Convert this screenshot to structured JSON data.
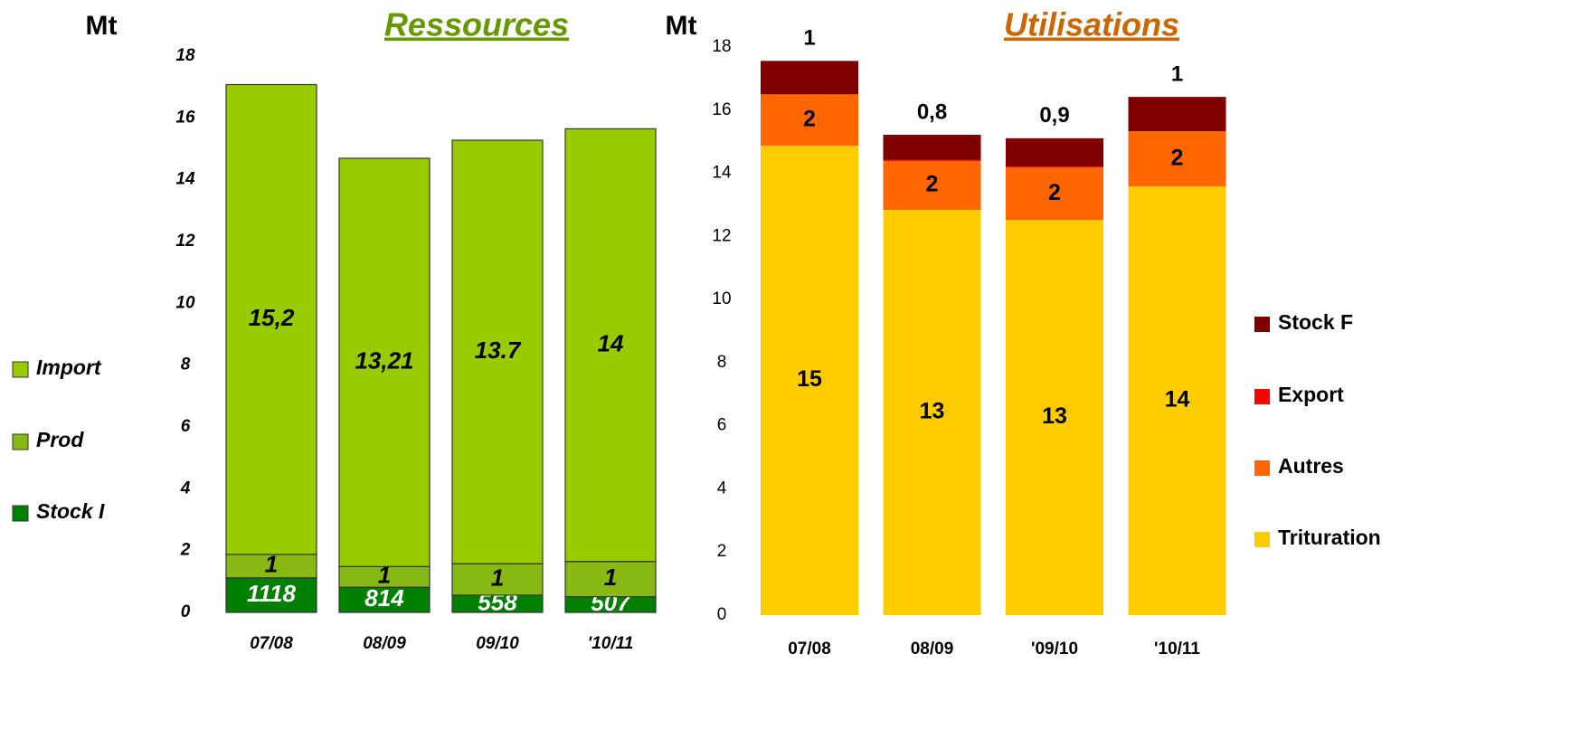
{
  "chart_data": [
    {
      "type": "stacked_bar",
      "title": "Ressources",
      "y_label": "Mt",
      "categories": [
        "07/08",
        "08/09",
        "09/10",
        "'10/11"
      ],
      "ylim": [
        0,
        18
      ],
      "yticks": [
        0,
        2,
        4,
        6,
        8,
        10,
        12,
        14,
        16,
        18
      ],
      "series": [
        {
          "name": "Stock I",
          "color": "#008000",
          "label_color": "#ffffff",
          "values": [
            1.118,
            0.814,
            0.558,
            0.507
          ],
          "value_labels": [
            "1118",
            "814",
            "558",
            "507"
          ]
        },
        {
          "name": "Prod",
          "color": "#88b814",
          "label_color": "#000000",
          "values": [
            0.76,
            0.67,
            1.02,
            1.14
          ],
          "value_labels": [
            "1",
            "1",
            "1",
            "1"
          ]
        },
        {
          "name": "Import",
          "color": "#99cc00",
          "label_color": "#000000",
          "values": [
            15.2,
            13.21,
            13.7,
            14
          ],
          "value_labels": [
            "15,2",
            "13,21",
            "13.7",
            "14"
          ]
        }
      ]
    },
    {
      "type": "stacked_bar",
      "title": "Utilisations",
      "y_label": "Mt",
      "categories": [
        "07/08",
        "08/09",
        "'09/10",
        "'10/11"
      ],
      "ylim": [
        0,
        18
      ],
      "yticks": [
        0,
        2,
        4,
        6,
        8,
        10,
        12,
        14,
        16,
        18
      ],
      "series": [
        {
          "name": "Trituration",
          "color": "#ffcc00",
          "label_color": "#000000",
          "values": [
            14.87,
            12.84,
            12.52,
            13.58
          ],
          "value_labels": [
            "15",
            "13",
            "13",
            "14"
          ]
        },
        {
          "name": "Autres",
          "color": "#ff6600",
          "label_color": "#000000",
          "values": [
            1.63,
            1.55,
            1.66,
            1.75
          ],
          "value_labels": [
            "2",
            "2",
            "2",
            "2"
          ]
        },
        {
          "name": "Export",
          "color": "#ff0000",
          "values": [
            0,
            0.03,
            0.03,
            0
          ]
        },
        {
          "name": "Stock F",
          "color": "#800000",
          "label_color": "#000000",
          "label_position": "above",
          "values": [
            1.06,
            0.8,
            0.9,
            1.09
          ],
          "value_labels": [
            "1",
            "0,8",
            "0,9",
            "1"
          ]
        }
      ]
    }
  ]
}
